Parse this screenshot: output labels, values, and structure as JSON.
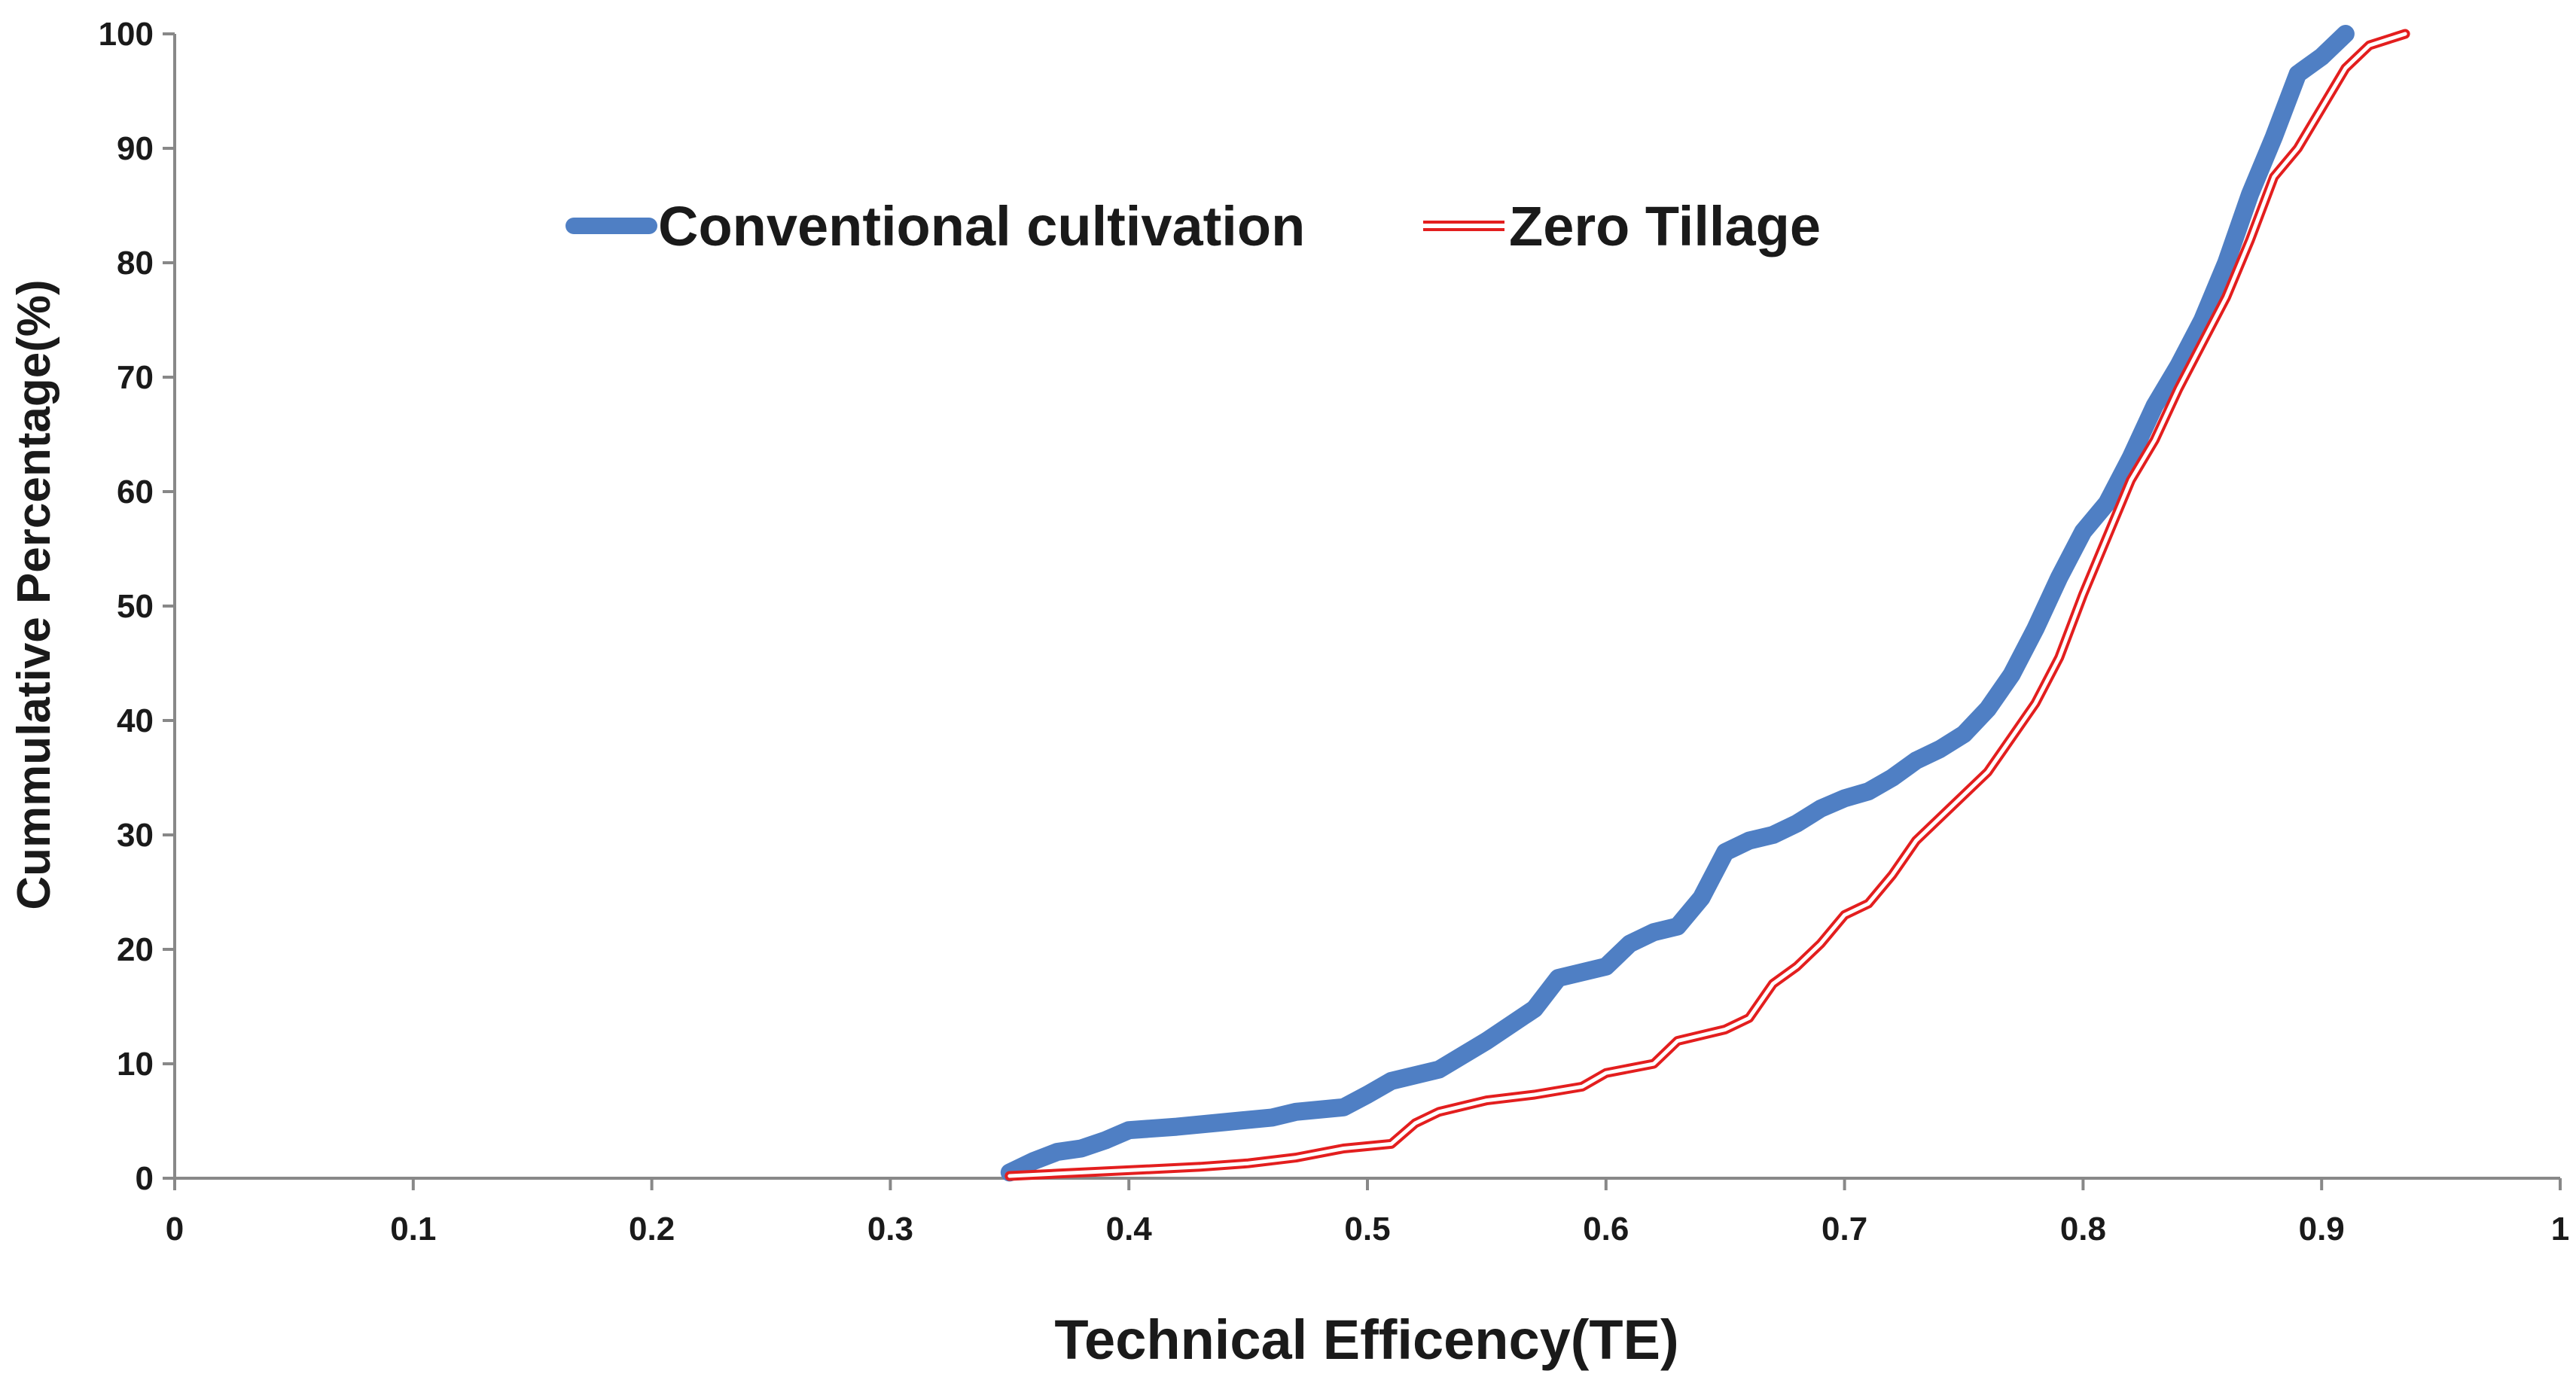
{
  "chart_data": {
    "type": "line",
    "title": "",
    "xlabel": "Technical Efficency(TE)",
    "ylabel": "Cummulative Percentage(%)",
    "xlim": [
      0,
      1
    ],
    "ylim": [
      0,
      100
    ],
    "x_ticks": [
      "0",
      "0.1",
      "0.2",
      "0.3",
      "0.4",
      "0.5",
      "0.6",
      "0.7",
      "0.8",
      "0.9",
      "1"
    ],
    "y_ticks": [
      "0",
      "10",
      "20",
      "30",
      "40",
      "50",
      "60",
      "70",
      "80",
      "90",
      "100"
    ],
    "grid": false,
    "legend_position": "top",
    "series": [
      {
        "name": "Conventional cultivation",
        "color": "#4f7fc4",
        "style": "thick-solid",
        "points": [
          [
            0.35,
            0.5
          ],
          [
            0.36,
            1.5
          ],
          [
            0.37,
            2.3
          ],
          [
            0.38,
            2.6
          ],
          [
            0.39,
            3.3
          ],
          [
            0.4,
            4.2
          ],
          [
            0.42,
            4.5
          ],
          [
            0.44,
            4.9
          ],
          [
            0.46,
            5.3
          ],
          [
            0.47,
            5.8
          ],
          [
            0.49,
            6.2
          ],
          [
            0.5,
            7.3
          ],
          [
            0.51,
            8.5
          ],
          [
            0.53,
            9.5
          ],
          [
            0.55,
            12.0
          ],
          [
            0.57,
            14.8
          ],
          [
            0.58,
            17.5
          ],
          [
            0.6,
            18.5
          ],
          [
            0.61,
            20.5
          ],
          [
            0.62,
            21.5
          ],
          [
            0.63,
            22.0
          ],
          [
            0.64,
            24.5
          ],
          [
            0.65,
            28.5
          ],
          [
            0.66,
            29.5
          ],
          [
            0.67,
            30.0
          ],
          [
            0.68,
            31.0
          ],
          [
            0.69,
            32.3
          ],
          [
            0.7,
            33.2
          ],
          [
            0.71,
            33.8
          ],
          [
            0.72,
            35.0
          ],
          [
            0.73,
            36.5
          ],
          [
            0.74,
            37.5
          ],
          [
            0.75,
            38.8
          ],
          [
            0.76,
            41.0
          ],
          [
            0.77,
            44.0
          ],
          [
            0.78,
            48.0
          ],
          [
            0.79,
            52.5
          ],
          [
            0.8,
            56.5
          ],
          [
            0.81,
            59.0
          ],
          [
            0.82,
            63.0
          ],
          [
            0.83,
            67.5
          ],
          [
            0.84,
            71.0
          ],
          [
            0.85,
            75.0
          ],
          [
            0.86,
            80.0
          ],
          [
            0.87,
            86.0
          ],
          [
            0.88,
            91.0
          ],
          [
            0.89,
            96.5
          ],
          [
            0.9,
            98.0
          ],
          [
            0.91,
            100.0
          ]
        ]
      },
      {
        "name": "Zero Tillage",
        "color": "#e31e1e",
        "style": "double-outline",
        "points": [
          [
            0.35,
            0.2
          ],
          [
            0.37,
            0.4
          ],
          [
            0.4,
            0.7
          ],
          [
            0.43,
            1.0
          ],
          [
            0.45,
            1.3
          ],
          [
            0.47,
            1.8
          ],
          [
            0.49,
            2.6
          ],
          [
            0.51,
            3.0
          ],
          [
            0.52,
            4.8
          ],
          [
            0.53,
            5.8
          ],
          [
            0.55,
            6.8
          ],
          [
            0.57,
            7.3
          ],
          [
            0.59,
            8.0
          ],
          [
            0.6,
            9.2
          ],
          [
            0.62,
            10.0
          ],
          [
            0.63,
            12.0
          ],
          [
            0.65,
            13.0
          ],
          [
            0.66,
            14.0
          ],
          [
            0.67,
            17.0
          ],
          [
            0.68,
            18.5
          ],
          [
            0.69,
            20.5
          ],
          [
            0.7,
            23.0
          ],
          [
            0.71,
            24.0
          ],
          [
            0.72,
            26.5
          ],
          [
            0.73,
            29.5
          ],
          [
            0.74,
            31.5
          ],
          [
            0.75,
            33.5
          ],
          [
            0.76,
            35.5
          ],
          [
            0.77,
            38.5
          ],
          [
            0.78,
            41.5
          ],
          [
            0.79,
            45.5
          ],
          [
            0.8,
            51.0
          ],
          [
            0.81,
            56.0
          ],
          [
            0.82,
            61.0
          ],
          [
            0.83,
            64.5
          ],
          [
            0.84,
            69.0
          ],
          [
            0.85,
            73.0
          ],
          [
            0.86,
            77.0
          ],
          [
            0.87,
            82.0
          ],
          [
            0.88,
            87.5
          ],
          [
            0.89,
            90.0
          ],
          [
            0.9,
            93.5
          ],
          [
            0.91,
            97.0
          ],
          [
            0.92,
            99.0
          ],
          [
            0.935,
            100.0
          ]
        ]
      }
    ]
  }
}
